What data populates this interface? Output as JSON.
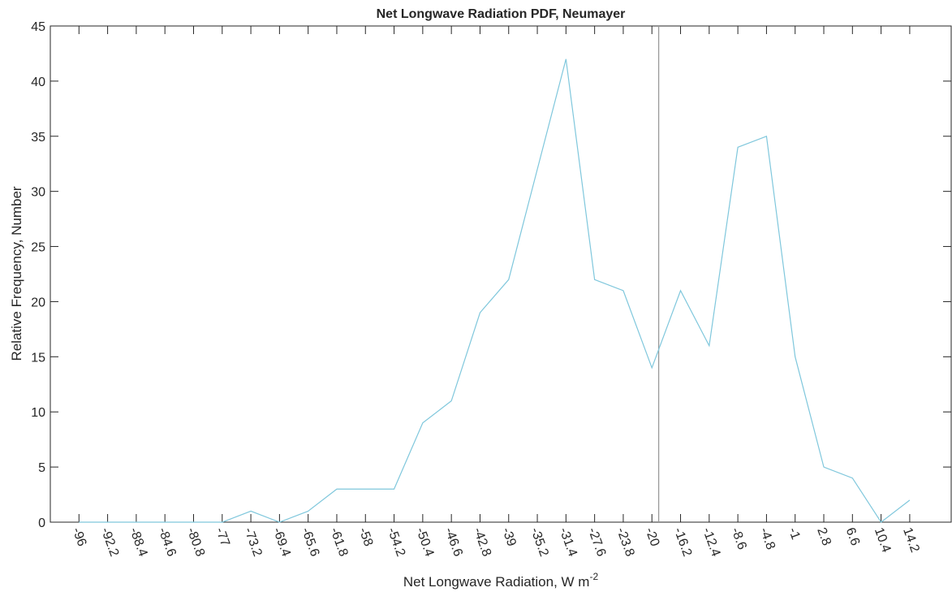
{
  "chart_data": {
    "type": "line",
    "title": "Net Longwave Radiation PDF, Neumayer",
    "xlabel": "Net Longwave Radiation, W m",
    "xlabel_superscript": "-2",
    "ylabel": "Relative Frequency, Number",
    "x": [
      -96,
      -92.2,
      -88.4,
      -84.6,
      -80.8,
      -77,
      -73.2,
      -69.4,
      -65.6,
      -61.8,
      -58,
      -54.2,
      -50.4,
      -46.6,
      -42.8,
      -39,
      -35.2,
      -31.4,
      -27.6,
      -23.8,
      -20,
      -16.2,
      -12.4,
      -8.6,
      -4.8,
      -1,
      2.8,
      6.6,
      10.4,
      14.2
    ],
    "values": [
      0,
      0,
      0,
      0,
      0,
      0,
      1,
      0,
      1,
      3,
      3,
      3,
      9,
      11,
      19,
      22,
      32,
      42,
      22,
      21,
      14,
      21,
      16,
      34,
      35,
      15,
      5,
      4,
      0,
      2
    ],
    "color": "#7fc7dc",
    "vline": -19.1,
    "vline_color": "#999999",
    "xlim": [
      -99.8,
      19.7
    ],
    "xticks": [
      -96,
      -92.2,
      -88.4,
      -84.6,
      -80.8,
      -77,
      -73.2,
      -69.4,
      -65.6,
      -61.8,
      -58,
      -54.2,
      -50.4,
      -46.6,
      -42.8,
      -39,
      -35.2,
      -31.4,
      -27.6,
      -23.8,
      -20,
      -16.2,
      -12.4,
      -8.6,
      -4.8,
      -1,
      2.8,
      6.6,
      10.4,
      14.2
    ],
    "ylim": [
      0,
      45
    ],
    "yticks": [
      0,
      5,
      10,
      15,
      20,
      25,
      30,
      35,
      40,
      45
    ],
    "grid": false
  }
}
